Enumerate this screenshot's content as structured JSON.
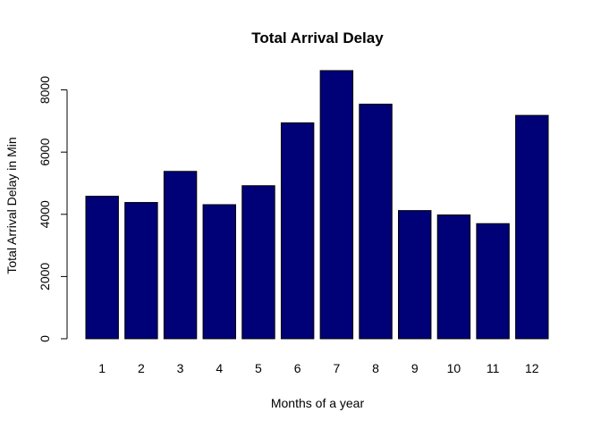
{
  "chart_data": {
    "type": "bar",
    "title": "Total Arrival Delay",
    "xlabel": "Months of a year",
    "ylabel": "Total Arrival Delay in Min",
    "categories": [
      "1",
      "2",
      "3",
      "4",
      "5",
      "6",
      "7",
      "8",
      "9",
      "10",
      "11",
      "12"
    ],
    "values": [
      4580,
      4380,
      5380,
      4310,
      4920,
      6940,
      8620,
      7540,
      4120,
      3980,
      3700,
      7180
    ],
    "y_ticks": [
      0,
      2000,
      4000,
      6000,
      8000
    ],
    "ylim": [
      0,
      8620
    ],
    "bar_color": "#000077",
    "grid": false,
    "legend": false
  }
}
